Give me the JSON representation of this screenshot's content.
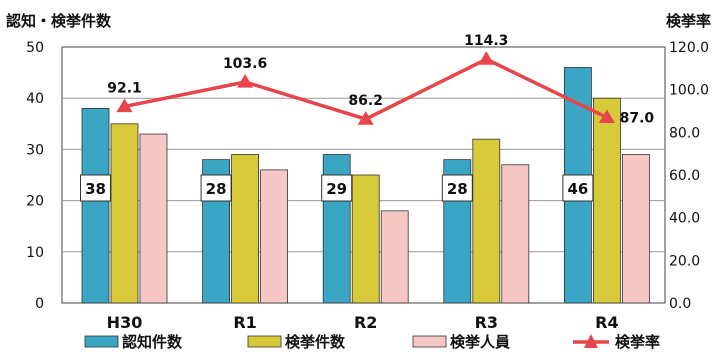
{
  "chart_data": {
    "type": "bar",
    "left_axis_label": "認知・検挙件数",
    "right_axis_label": "検挙率",
    "categories": [
      "H30",
      "R1",
      "R2",
      "R3",
      "R4"
    ],
    "series": [
      {
        "name": "認知件数",
        "type": "bar",
        "axis": "left",
        "values": [
          38,
          28,
          29,
          28,
          46
        ],
        "color": "#3aa6c4"
      },
      {
        "name": "検挙件数",
        "type": "bar",
        "axis": "left",
        "values": [
          35,
          29,
          25,
          32,
          40
        ],
        "color": "#d8c93a"
      },
      {
        "name": "検挙人員",
        "type": "bar",
        "axis": "left",
        "values": [
          33,
          26,
          18,
          27,
          29
        ],
        "color": "#f6c7c4"
      },
      {
        "name": "検挙率",
        "type": "line",
        "axis": "right",
        "values": [
          92.1,
          103.6,
          86.2,
          114.3,
          87.0
        ],
        "color": "#e8444c"
      }
    ],
    "recognized_box_labels": [
      "38",
      "28",
      "29",
      "28",
      "46"
    ],
    "rate_labels": [
      "92.1",
      "103.6",
      "86.2",
      "114.3",
      "87.0"
    ],
    "left_ticks": [
      "0",
      "10",
      "20",
      "30",
      "40",
      "50"
    ],
    "right_ticks": [
      "0.0",
      "20.0",
      "40.0",
      "60.0",
      "80.0",
      "100.0",
      "120.0"
    ],
    "ylim_left": [
      0,
      50
    ],
    "ylim_right": [
      0,
      120
    ],
    "grid": true,
    "legend_position": "bottom"
  }
}
